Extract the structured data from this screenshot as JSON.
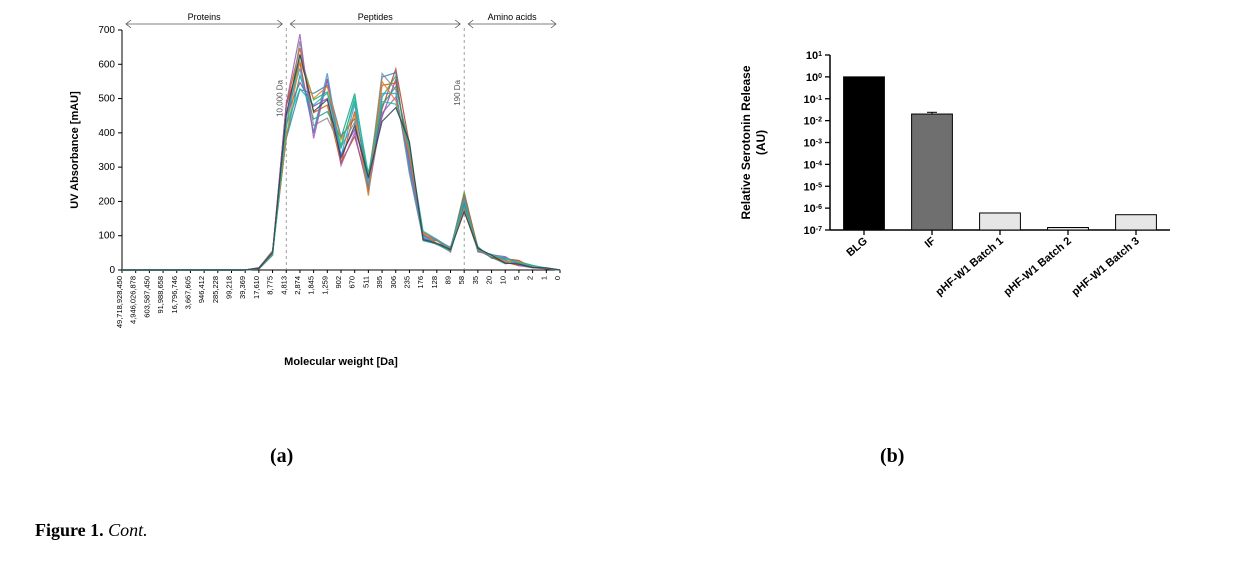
{
  "panelA": {
    "type": "line",
    "title_regions": [
      "Proteins",
      "Peptides",
      "Amino acids"
    ],
    "region_markers": [
      {
        "label": "10,000 Da",
        "x_index": 12
      },
      {
        "label": "190 Da",
        "x_index": 25
      }
    ],
    "x_labels": [
      "49,718,928,450",
      "4,946,026,878",
      "603,587,450",
      "91,988,658",
      "16,796,746",
      "3,667,605",
      "946,412",
      "285,228",
      "99,218",
      "39,369",
      "17,610",
      "8,775",
      "4,813",
      "2,874",
      "1,845",
      "1,259",
      "902",
      "670",
      "511",
      "395",
      "306",
      "235",
      "176",
      "128",
      "89",
      "58",
      "35",
      "20",
      "10",
      "5",
      "2",
      "1",
      "0"
    ],
    "y_label": "UV Absorbance [mAU]",
    "x_label": "Molecular weight [Da]",
    "y_ticks": [
      0,
      100,
      200,
      300,
      400,
      500,
      600,
      700
    ],
    "ylim": [
      0,
      700
    ],
    "series_colors": [
      "#c0392b",
      "#2980b9",
      "#27ae60",
      "#8e44ad",
      "#d35400",
      "#16a085",
      "#7f8c8d",
      "#3498db",
      "#9b59b6",
      "#e67e22",
      "#1abc9c",
      "#2c3e50"
    ],
    "base_profile": [
      0,
      0,
      0,
      0,
      0,
      0,
      0,
      0,
      0,
      0,
      5,
      50,
      430,
      600,
      450,
      500,
      340,
      450,
      250,
      500,
      540,
      330,
      100,
      80,
      60,
      200,
      60,
      40,
      30,
      20,
      10,
      5,
      0
    ],
    "background": "#ffffff",
    "axis_color": "#000000",
    "grid_color": "#cccccc",
    "font_small": 8,
    "font_axis": 11,
    "line_width": 1.2
  },
  "panelB": {
    "type": "bar-log",
    "y_label": "Relative Serotonin Release\n(AU)",
    "y_ticks_exp": [
      -7,
      -6,
      -5,
      -4,
      -3,
      -2,
      -1,
      0,
      1
    ],
    "ylim_exp": [
      -7,
      1
    ],
    "categories": [
      "BLG",
      "IF",
      "pHF-W1 Batch 1",
      "pHF-W1 Batch 2",
      "pHF-W1 Batch 3"
    ],
    "values": [
      1.0,
      0.02,
      6e-07,
      1.3e-07,
      5e-07
    ],
    "bar_fill": [
      "#000000",
      "#6f6f6f",
      "#e6e6e6",
      "#e6e6e6",
      "#e6e6e6"
    ],
    "bar_stroke": "#000000",
    "error": [
      0,
      0.004,
      0,
      0,
      0
    ],
    "background": "#ffffff",
    "axis_color": "#000000",
    "font_axis": 12,
    "font_tick": 11,
    "bar_width": 0.6
  },
  "subpanel_labels": {
    "a": "(a)",
    "b": "(b)"
  },
  "caption": {
    "bold": "Figure 1.",
    "rest": " Cont."
  }
}
